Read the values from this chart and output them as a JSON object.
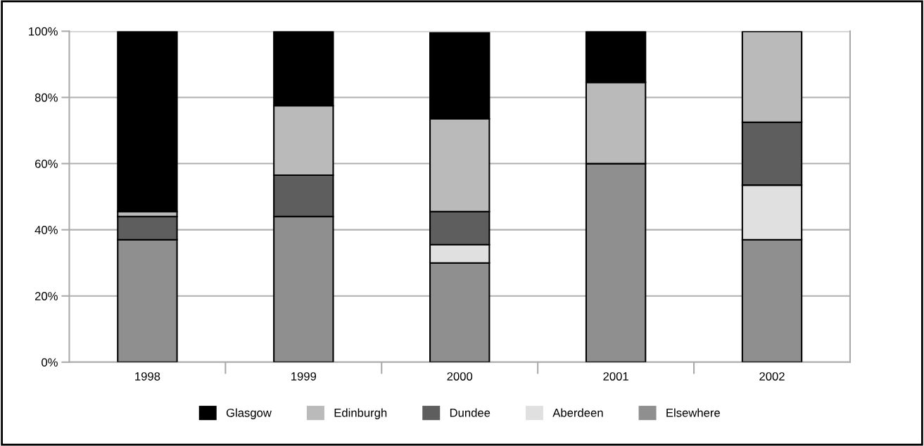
{
  "chart_data": {
    "type": "bar",
    "stacked": true,
    "categories": [
      "1998",
      "1999",
      "2000",
      "2001",
      "2002"
    ],
    "series": [
      {
        "name": "Elsewhere",
        "color": "#8f8f8f",
        "values": [
          37,
          44,
          30,
          60,
          37
        ]
      },
      {
        "name": "Aberdeen",
        "color": "#e0e0e0",
        "values": [
          0,
          0,
          5.5,
          0,
          16.5
        ]
      },
      {
        "name": "Dundee",
        "color": "#5e5e5e",
        "values": [
          7,
          12.5,
          10,
          0,
          19
        ]
      },
      {
        "name": "Edinburgh",
        "color": "#bababa",
        "values": [
          1.5,
          21,
          28,
          24.5,
          27.5
        ]
      },
      {
        "name": "Glasgow",
        "color": "#000000",
        "values": [
          54.5,
          22.5,
          26,
          15.5,
          0
        ]
      }
    ],
    "ylim": [
      0,
      100
    ],
    "yticks": [
      {
        "value": 0,
        "label": "0%"
      },
      {
        "value": 20,
        "label": "20%"
      },
      {
        "value": 40,
        "label": "40%"
      },
      {
        "value": 60,
        "label": "60%"
      },
      {
        "value": 80,
        "label": "80%"
      },
      {
        "value": 100,
        "label": "100%"
      }
    ],
    "grid": "y",
    "legend": "bottom"
  }
}
